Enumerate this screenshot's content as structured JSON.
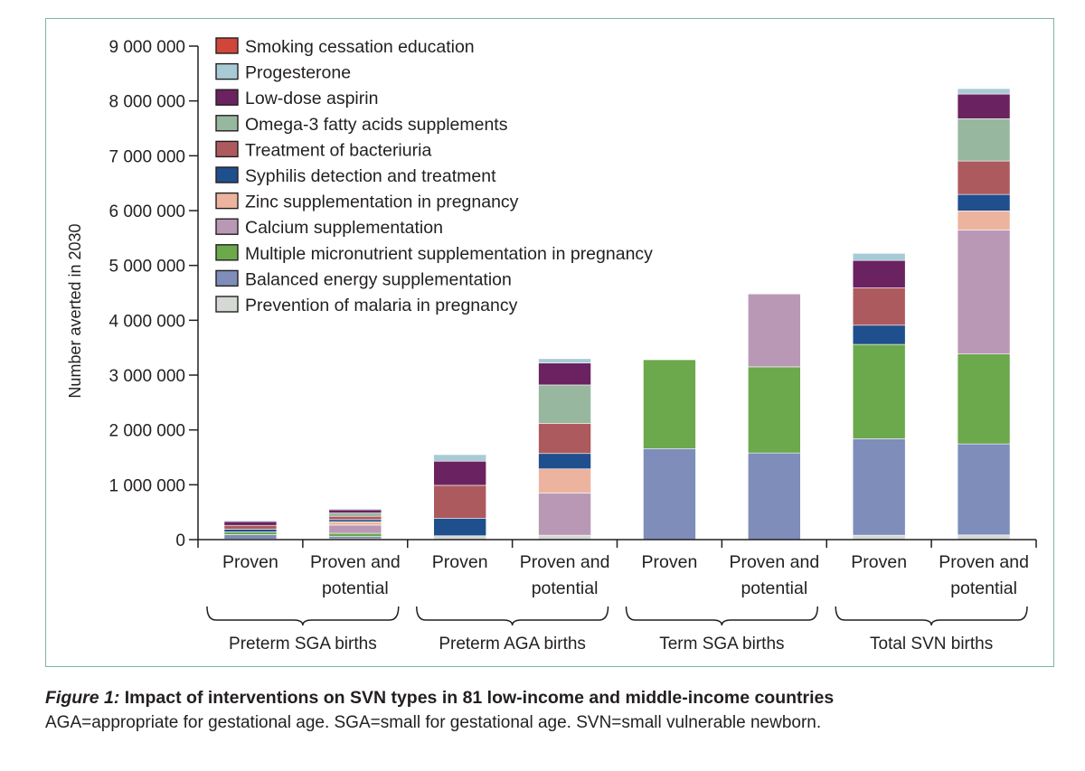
{
  "figure": {
    "label": "Figure 1:",
    "title": "Impact of interventions on SVN types in 81 low-income and middle-income countries",
    "note": "AGA=appropriate for gestational age. SGA=small for gestational age. SVN=small vulnerable newborn."
  },
  "chart_data": {
    "type": "bar",
    "stacked": true,
    "title": "",
    "xlabel": "",
    "ylabel": "Number averted in 2030",
    "ylim": [
      0,
      9000000
    ],
    "yticks": [
      0,
      1000000,
      2000000,
      3000000,
      4000000,
      5000000,
      6000000,
      7000000,
      8000000,
      9000000
    ],
    "ytick_labels": [
      "0",
      "1 000 000",
      "2 000 000",
      "3 000 000",
      "4 000 000",
      "5 000 000",
      "6 000 000",
      "7 000 000",
      "8 000 000",
      "9 000 000"
    ],
    "grid": false,
    "legend_position": "top-left",
    "categories": [
      "Proven",
      "Proven and potential",
      "Proven",
      "Proven and potential",
      "Proven",
      "Proven and potential",
      "Proven",
      "Proven and potential"
    ],
    "category_lines": [
      [
        "Proven"
      ],
      [
        "Proven and",
        "potential"
      ],
      [
        "Proven"
      ],
      [
        "Proven and",
        "potential"
      ],
      [
        "Proven"
      ],
      [
        "Proven and",
        "potential"
      ],
      [
        "Proven"
      ],
      [
        "Proven and",
        "potential"
      ]
    ],
    "groups": [
      {
        "label": "Preterm SGA births",
        "categories": [
          0,
          1
        ]
      },
      {
        "label": "Preterm AGA births",
        "categories": [
          2,
          3
        ]
      },
      {
        "label": "Term SGA births",
        "categories": [
          4,
          5
        ]
      },
      {
        "label": "Total SVN births",
        "categories": [
          6,
          7
        ]
      }
    ],
    "series": [
      {
        "name": "Prevention of malaria in pregnancy",
        "color": "#d5d9d4",
        "values": [
          10000,
          15000,
          70000,
          80000,
          0,
          0,
          80000,
          85000
        ]
      },
      {
        "name": "Balanced energy supplementation",
        "color": "#7e8db9",
        "values": [
          80000,
          40000,
          0,
          0,
          1660000,
          1580000,
          1760000,
          1660000
        ]
      },
      {
        "name": "Multiple micronutrient supplementation in pregnancy",
        "color": "#6ca84c",
        "values": [
          50000,
          60000,
          0,
          0,
          1620000,
          1570000,
          1720000,
          1640000
        ]
      },
      {
        "name": "Calcium supplementation",
        "color": "#b998b6",
        "values": [
          0,
          150000,
          0,
          770000,
          0,
          1330000,
          0,
          2260000
        ]
      },
      {
        "name": "Zinc supplementation in pregnancy",
        "color": "#ecb49e",
        "values": [
          0,
          60000,
          0,
          440000,
          0,
          0,
          0,
          350000
        ]
      },
      {
        "name": "Syphilis detection and treatment",
        "color": "#1f4f8c",
        "values": [
          50000,
          40000,
          320000,
          280000,
          0,
          0,
          350000,
          300000
        ]
      },
      {
        "name": "Treatment of bacteriuria",
        "color": "#ad5a5e",
        "values": [
          70000,
          60000,
          600000,
          550000,
          0,
          0,
          680000,
          610000
        ]
      },
      {
        "name": "Omega-3 fatty acids supplements",
        "color": "#97b89f",
        "values": [
          0,
          60000,
          0,
          700000,
          0,
          0,
          0,
          770000
        ]
      },
      {
        "name": "Low-dose aspirin",
        "color": "#6b2260",
        "values": [
          70000,
          60000,
          440000,
          400000,
          0,
          0,
          500000,
          450000
        ]
      },
      {
        "name": "Progesterone",
        "color": "#a8cbd6",
        "values": [
          20000,
          20000,
          120000,
          80000,
          0,
          0,
          130000,
          100000
        ]
      },
      {
        "name": "Smoking cessation education",
        "color": "#d0463a",
        "values": [
          0,
          5000,
          0,
          0,
          0,
          0,
          0,
          0
        ]
      }
    ]
  }
}
